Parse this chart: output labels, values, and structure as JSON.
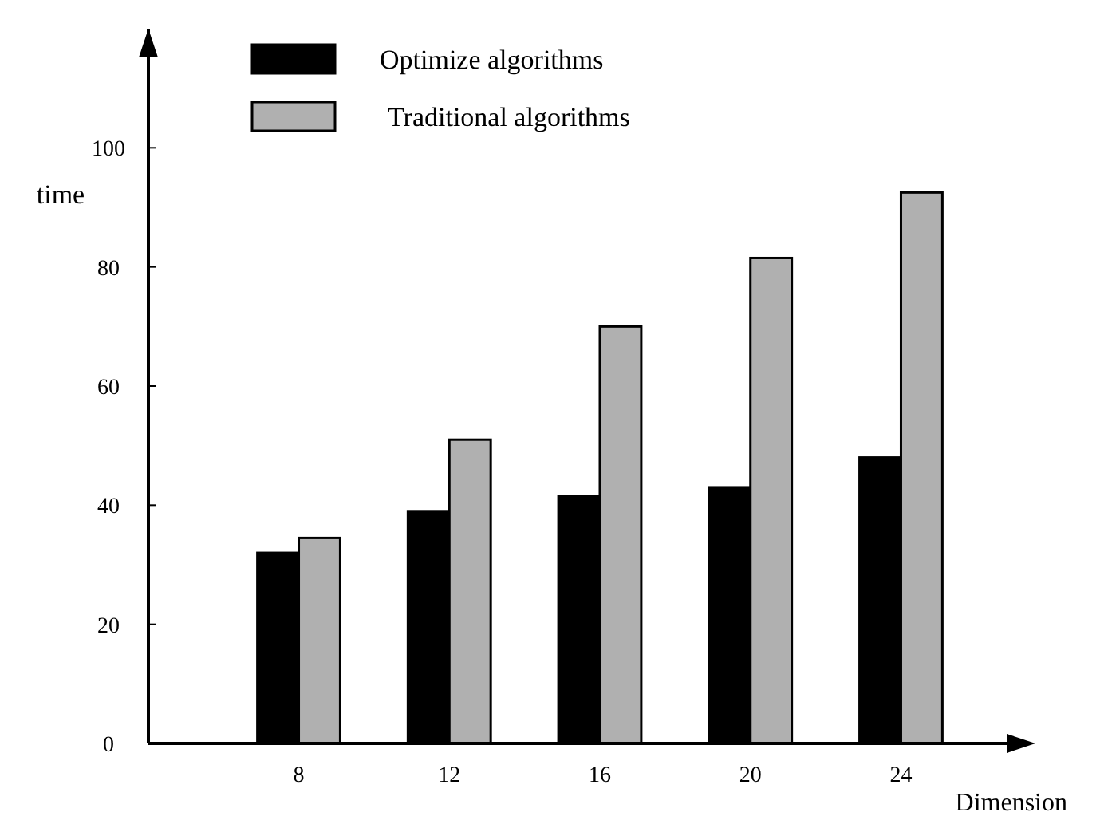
{
  "chart_data": {
    "type": "bar",
    "xlabel": "Dimension",
    "ylabel": "time",
    "categories": [
      "8",
      "12",
      "16",
      "20",
      "24"
    ],
    "series": [
      {
        "name": "Optimize algorithms",
        "color": "#000000",
        "values": [
          32,
          39,
          41.5,
          43,
          48
        ]
      },
      {
        "name": "Traditional algorithms",
        "color": "#b0b0b0",
        "values": [
          34.5,
          51,
          70,
          81.5,
          92.5
        ]
      }
    ],
    "ylim": [
      0,
      120
    ],
    "yticks": [
      0,
      20,
      40,
      60,
      80,
      100
    ],
    "grid": false,
    "legend": "top left"
  }
}
